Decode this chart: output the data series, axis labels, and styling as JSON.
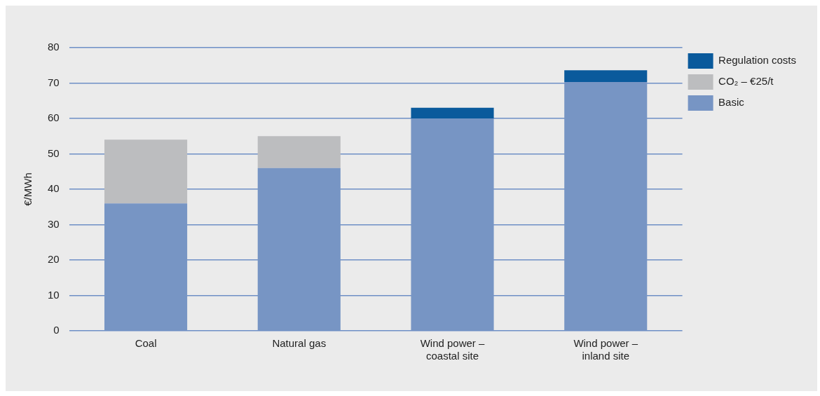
{
  "chart_data": {
    "type": "bar",
    "stacked": true,
    "ylabel": "€/MWh",
    "categories": [
      "Coal",
      "Natural gas",
      "Wind power –\ncoastal site",
      "Wind power –\ninland site"
    ],
    "series": [
      {
        "name": "Basic",
        "color": "#7795c4",
        "values": [
          36,
          46,
          60,
          70.3
        ]
      },
      {
        "name": "CO₂ – €25/t",
        "color": "#bcbdbf",
        "values": [
          18,
          9,
          null,
          null
        ]
      },
      {
        "name": "Regulation costs",
        "color": "#0a5a9c",
        "values": [
          null,
          null,
          3,
          3.3
        ]
      }
    ],
    "ylim": [
      0,
      80
    ],
    "yticks": [
      0,
      10,
      20,
      30,
      40,
      50,
      60,
      70,
      80
    ],
    "grid": "y",
    "legend": "top right"
  }
}
